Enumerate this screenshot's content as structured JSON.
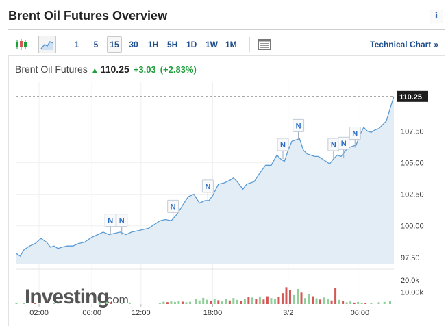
{
  "page": {
    "title": "Brent Oil Futures Overview",
    "info_glyph": "i"
  },
  "toolbar": {
    "chart_type_icons": [
      {
        "icon": "candlestick-icon"
      },
      {
        "icon": "area-chart-icon",
        "active": true
      }
    ],
    "timeframes": [
      {
        "label": "1"
      },
      {
        "label": "5"
      },
      {
        "label": "15",
        "active": true
      },
      {
        "label": "30"
      },
      {
        "label": "1H"
      },
      {
        "label": "5H"
      },
      {
        "label": "1D"
      },
      {
        "label": "1W"
      },
      {
        "label": "1M"
      }
    ],
    "table_icon": "table-icon",
    "technical_link": "Technical Chart",
    "technical_chevron": "»"
  },
  "quote": {
    "name": "Brent Oil Futures",
    "arrow": "▲",
    "last": "110.25",
    "change": "+3.03",
    "change_pct": "(+2.83%)"
  },
  "colors": {
    "line": "#5a9bd5",
    "area": "#e3edf6",
    "up_volume": "#8fcf9a",
    "down_volume": "#d55858",
    "link": "#1f4e8c",
    "positive": "#1f9e3c",
    "price_tag_bg": "#1e1e1e"
  },
  "watermark": {
    "brand": "Investing",
    "suffix": ".com"
  },
  "chart_data": {
    "type": "area",
    "current_price_label": "110.25",
    "current_price": 110.25,
    "ylim": [
      97.0,
      111.0
    ],
    "yticks": [
      "97.50",
      "100.00",
      "102.50",
      "105.00",
      "107.50"
    ],
    "ytick_values": [
      97.5,
      100.0,
      102.5,
      105.0,
      107.5
    ],
    "xticks": [
      "02:00",
      "06:00",
      "12:00",
      "18:00",
      "3/2",
      "06:00"
    ],
    "xtick_positions": [
      0.06,
      0.2,
      0.33,
      0.52,
      0.72,
      0.91
    ],
    "x": [
      0,
      0.01,
      0.02,
      0.035,
      0.05,
      0.065,
      0.08,
      0.09,
      0.1,
      0.11,
      0.12,
      0.135,
      0.15,
      0.165,
      0.18,
      0.2,
      0.215,
      0.23,
      0.245,
      0.26,
      0.275,
      0.29,
      0.305,
      0.32,
      0.335,
      0.35,
      0.365,
      0.38,
      0.395,
      0.41,
      0.425,
      0.44,
      0.455,
      0.47,
      0.485,
      0.5,
      0.51,
      0.52,
      0.535,
      0.55,
      0.565,
      0.575,
      0.585,
      0.6,
      0.61,
      0.62,
      0.63,
      0.645,
      0.66,
      0.675,
      0.69,
      0.7,
      0.71,
      0.72,
      0.73,
      0.74,
      0.75,
      0.76,
      0.77,
      0.78,
      0.79,
      0.8,
      0.81,
      0.82,
      0.83,
      0.84,
      0.85,
      0.86,
      0.87,
      0.88,
      0.89,
      0.9,
      0.91,
      0.92,
      0.93,
      0.94,
      0.95,
      0.96,
      0.97,
      0.98,
      0.99,
      1.0
    ],
    "values": [
      97.8,
      97.6,
      98.1,
      98.4,
      98.6,
      99.0,
      98.7,
      98.3,
      98.4,
      98.2,
      98.3,
      98.4,
      98.4,
      98.6,
      98.7,
      99.1,
      99.3,
      99.5,
      99.3,
      99.4,
      99.5,
      99.3,
      99.5,
      99.6,
      99.7,
      99.8,
      100.1,
      100.4,
      100.5,
      100.4,
      100.9,
      101.6,
      102.3,
      102.5,
      101.8,
      102.0,
      102.0,
      102.4,
      103.3,
      103.4,
      103.6,
      103.8,
      103.5,
      102.9,
      103.3,
      103.4,
      103.5,
      104.2,
      104.8,
      104.8,
      105.6,
      105.3,
      105.1,
      106.0,
      106.7,
      106.8,
      106.9,
      106.0,
      105.7,
      105.6,
      105.5,
      105.5,
      105.3,
      105.1,
      104.9,
      105.3,
      105.6,
      105.5,
      105.9,
      106.2,
      106.3,
      106.4,
      107.2,
      107.8,
      107.5,
      107.4,
      107.6,
      107.7,
      108.0,
      108.3,
      109.3,
      110.25
    ],
    "news_markers": [
      {
        "label": "N",
        "x": 0.249,
        "value": 99.3
      },
      {
        "label": "N",
        "x": 0.279,
        "value": 99.3
      },
      {
        "label": "N",
        "x": 0.415,
        "value": 100.4
      },
      {
        "label": "N",
        "x": 0.507,
        "value": 102.0
      },
      {
        "label": "N",
        "x": 0.706,
        "value": 105.3
      },
      {
        "label": "N",
        "x": 0.747,
        "value": 106.8
      },
      {
        "label": "N",
        "x": 0.84,
        "value": 105.3
      },
      {
        "label": "N",
        "x": 0.867,
        "value": 105.4
      },
      {
        "label": "N",
        "x": 0.897,
        "value": 106.2
      }
    ],
    "volume_ticks": [
      "20.0k",
      "10.00k"
    ],
    "volume_tick_values": [
      20000,
      10000
    ],
    "volume_max": 25000,
    "volume": [
      {
        "x": 0.0,
        "v": 1200,
        "up": true
      },
      {
        "x": 0.02,
        "v": 800,
        "up": true
      },
      {
        "x": 0.05,
        "v": 900,
        "up": false
      },
      {
        "x": 0.1,
        "v": 600,
        "up": true
      },
      {
        "x": 0.22,
        "v": 1500,
        "up": true
      },
      {
        "x": 0.24,
        "v": 1800,
        "up": true
      },
      {
        "x": 0.25,
        "v": 1000,
        "up": false
      },
      {
        "x": 0.28,
        "v": 700,
        "up": true
      },
      {
        "x": 0.3,
        "v": 1200,
        "up": true
      },
      {
        "x": 0.38,
        "v": 1100,
        "up": true
      },
      {
        "x": 0.39,
        "v": 2000,
        "up": true
      },
      {
        "x": 0.4,
        "v": 1600,
        "up": false
      },
      {
        "x": 0.41,
        "v": 2200,
        "up": true
      },
      {
        "x": 0.42,
        "v": 1800,
        "up": true
      },
      {
        "x": 0.43,
        "v": 2600,
        "up": true
      },
      {
        "x": 0.44,
        "v": 2000,
        "up": false
      },
      {
        "x": 0.45,
        "v": 1500,
        "up": true
      },
      {
        "x": 0.46,
        "v": 1900,
        "up": true
      },
      {
        "x": 0.475,
        "v": 4000,
        "up": true
      },
      {
        "x": 0.485,
        "v": 3000,
        "up": true
      },
      {
        "x": 0.495,
        "v": 5200,
        "up": true
      },
      {
        "x": 0.505,
        "v": 3600,
        "up": true
      },
      {
        "x": 0.515,
        "v": 2500,
        "up": false
      },
      {
        "x": 0.525,
        "v": 4300,
        "up": true
      },
      {
        "x": 0.535,
        "v": 3200,
        "up": false
      },
      {
        "x": 0.545,
        "v": 2200,
        "up": true
      },
      {
        "x": 0.555,
        "v": 4500,
        "up": true
      },
      {
        "x": 0.565,
        "v": 3000,
        "up": false
      },
      {
        "x": 0.575,
        "v": 5000,
        "up": true
      },
      {
        "x": 0.585,
        "v": 3500,
        "up": true
      },
      {
        "x": 0.595,
        "v": 2500,
        "up": false
      },
      {
        "x": 0.605,
        "v": 4200,
        "up": true
      },
      {
        "x": 0.615,
        "v": 6000,
        "up": false
      },
      {
        "x": 0.625,
        "v": 5500,
        "up": true
      },
      {
        "x": 0.635,
        "v": 4000,
        "up": false
      },
      {
        "x": 0.645,
        "v": 6300,
        "up": true
      },
      {
        "x": 0.655,
        "v": 3800,
        "up": false
      },
      {
        "x": 0.665,
        "v": 6500,
        "up": false
      },
      {
        "x": 0.675,
        "v": 5000,
        "up": true
      },
      {
        "x": 0.685,
        "v": 4500,
        "up": true
      },
      {
        "x": 0.695,
        "v": 6000,
        "up": false
      },
      {
        "x": 0.705,
        "v": 9000,
        "up": false
      },
      {
        "x": 0.715,
        "v": 14000,
        "up": false
      },
      {
        "x": 0.725,
        "v": 11500,
        "up": false
      },
      {
        "x": 0.735,
        "v": 7500,
        "up": true
      },
      {
        "x": 0.745,
        "v": 12500,
        "up": true
      },
      {
        "x": 0.755,
        "v": 9500,
        "up": false
      },
      {
        "x": 0.765,
        "v": 5000,
        "up": true
      },
      {
        "x": 0.775,
        "v": 8000,
        "up": true
      },
      {
        "x": 0.785,
        "v": 6500,
        "up": false
      },
      {
        "x": 0.795,
        "v": 4800,
        "up": true
      },
      {
        "x": 0.805,
        "v": 3800,
        "up": false
      },
      {
        "x": 0.815,
        "v": 5500,
        "up": true
      },
      {
        "x": 0.825,
        "v": 4200,
        "up": true
      },
      {
        "x": 0.835,
        "v": 3000,
        "up": false
      },
      {
        "x": 0.845,
        "v": 13500,
        "up": false
      },
      {
        "x": 0.855,
        "v": 3500,
        "up": true
      },
      {
        "x": 0.865,
        "v": 2500,
        "up": false
      },
      {
        "x": 0.875,
        "v": 1500,
        "up": true
      },
      {
        "x": 0.885,
        "v": 2200,
        "up": true
      },
      {
        "x": 0.895,
        "v": 1200,
        "up": false
      },
      {
        "x": 0.905,
        "v": 1800,
        "up": true
      },
      {
        "x": 0.915,
        "v": 1000,
        "up": true
      },
      {
        "x": 0.925,
        "v": 900,
        "up": false
      },
      {
        "x": 0.94,
        "v": 1100,
        "up": true
      },
      {
        "x": 0.96,
        "v": 1500,
        "up": true
      },
      {
        "x": 0.975,
        "v": 1800,
        "up": true
      },
      {
        "x": 0.99,
        "v": 2600,
        "up": true
      }
    ]
  }
}
